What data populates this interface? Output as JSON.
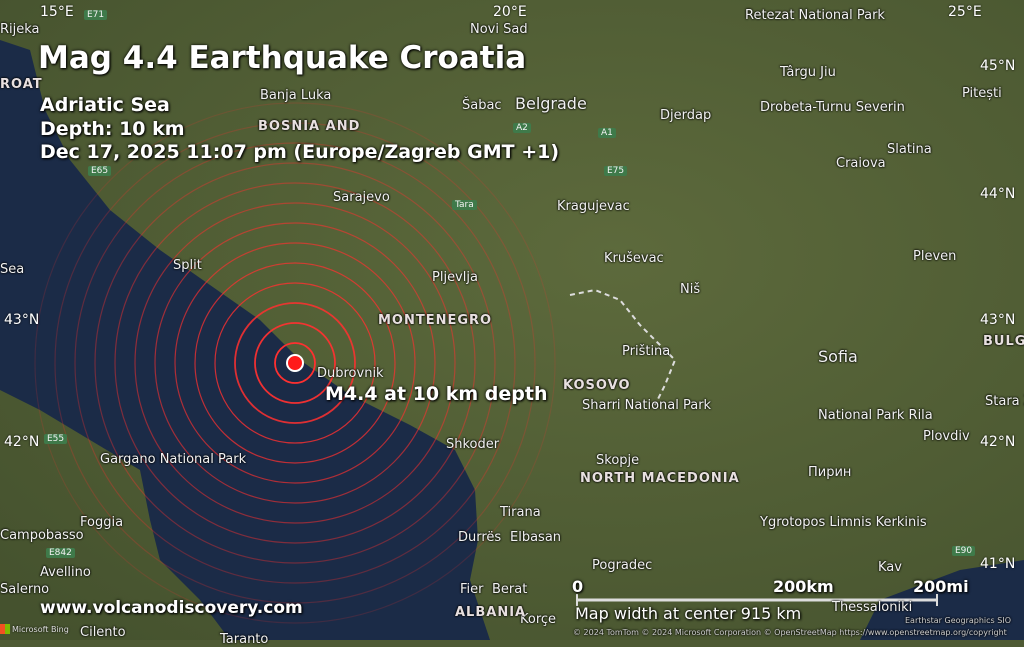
{
  "header": {
    "title": "Mag 4.4 Earthquake Croatia",
    "region": "Adriatic Sea",
    "depth": "Depth: 10 km",
    "datetime": "Dec 17, 2025 11:07 pm (Europe/Zagreb GMT +1)"
  },
  "quake": {
    "label": "M4.4 at 10 km depth",
    "magnitude": 4.4,
    "depth_km": 10,
    "color": "#ff1a1a"
  },
  "grid_labels": {
    "lon": [
      "15°E",
      "20°E",
      "25°E"
    ],
    "lat": [
      "45°N",
      "44°N",
      "43°N",
      "43°N",
      "42°N",
      "42°N",
      "41°N"
    ]
  },
  "cities": [
    "Rijeka",
    "Banja Luka",
    "Novi Sad",
    "Šabac",
    "Belgrade",
    "Sarajevo",
    "Split",
    "Kragujevac",
    "Kruševac",
    "Niš",
    "Pljevlja",
    "Dubrovnik",
    "Priština",
    "Shkoder",
    "Skopje",
    "Tirana",
    "Durrës",
    "Elbasan",
    "Berat",
    "Pogradec",
    "Thessaloniki",
    "Sofia",
    "Pleven",
    "Plovdiv",
    "Craiova",
    "Slatina",
    "Pitești",
    "Târgu Jiu",
    "Drobeta-Turnu Severin",
    "Foggia",
    "Avellino",
    "Salerno",
    "Campobasso",
    "Djerdap",
    "Kav",
    "Stara Z",
    "Sea",
    "Retezat National Park",
    "Gargano National Park",
    "Sharri National Park",
    "National Park Rila",
    "Ygrotopos Limnis Kerkinis",
    "Пирин",
    "Cilento",
    "Taranto",
    "Korçe",
    "Fier"
  ],
  "countries": [
    "BOSNIA AND",
    "MONTENEGRO",
    "KOSOVO",
    "NORTH MACEDONIA",
    "ALBANIA",
    "BULGA",
    "ROAT"
  ],
  "roads": [
    "E71",
    "E65",
    "A2",
    "A1",
    "E75",
    "E55",
    "E842",
    "E90",
    "Tara"
  ],
  "scale": {
    "zero": "0",
    "km": "200km",
    "mi": "200mi",
    "map_width": "Map width at center 915 km"
  },
  "footer": {
    "website": "www.volcanodiscovery.com",
    "attribution": "© 2024 TomTom © 2024 Microsoft Corporation © OpenStreetMap https://www.openstreetmap.org/copyright",
    "provider": "Earthstar Geographics SIO",
    "brand": "Microsoft Bing"
  },
  "colors": {
    "sea": "#1a2a45",
    "land": "#55623a",
    "circle": "#ff3030"
  }
}
